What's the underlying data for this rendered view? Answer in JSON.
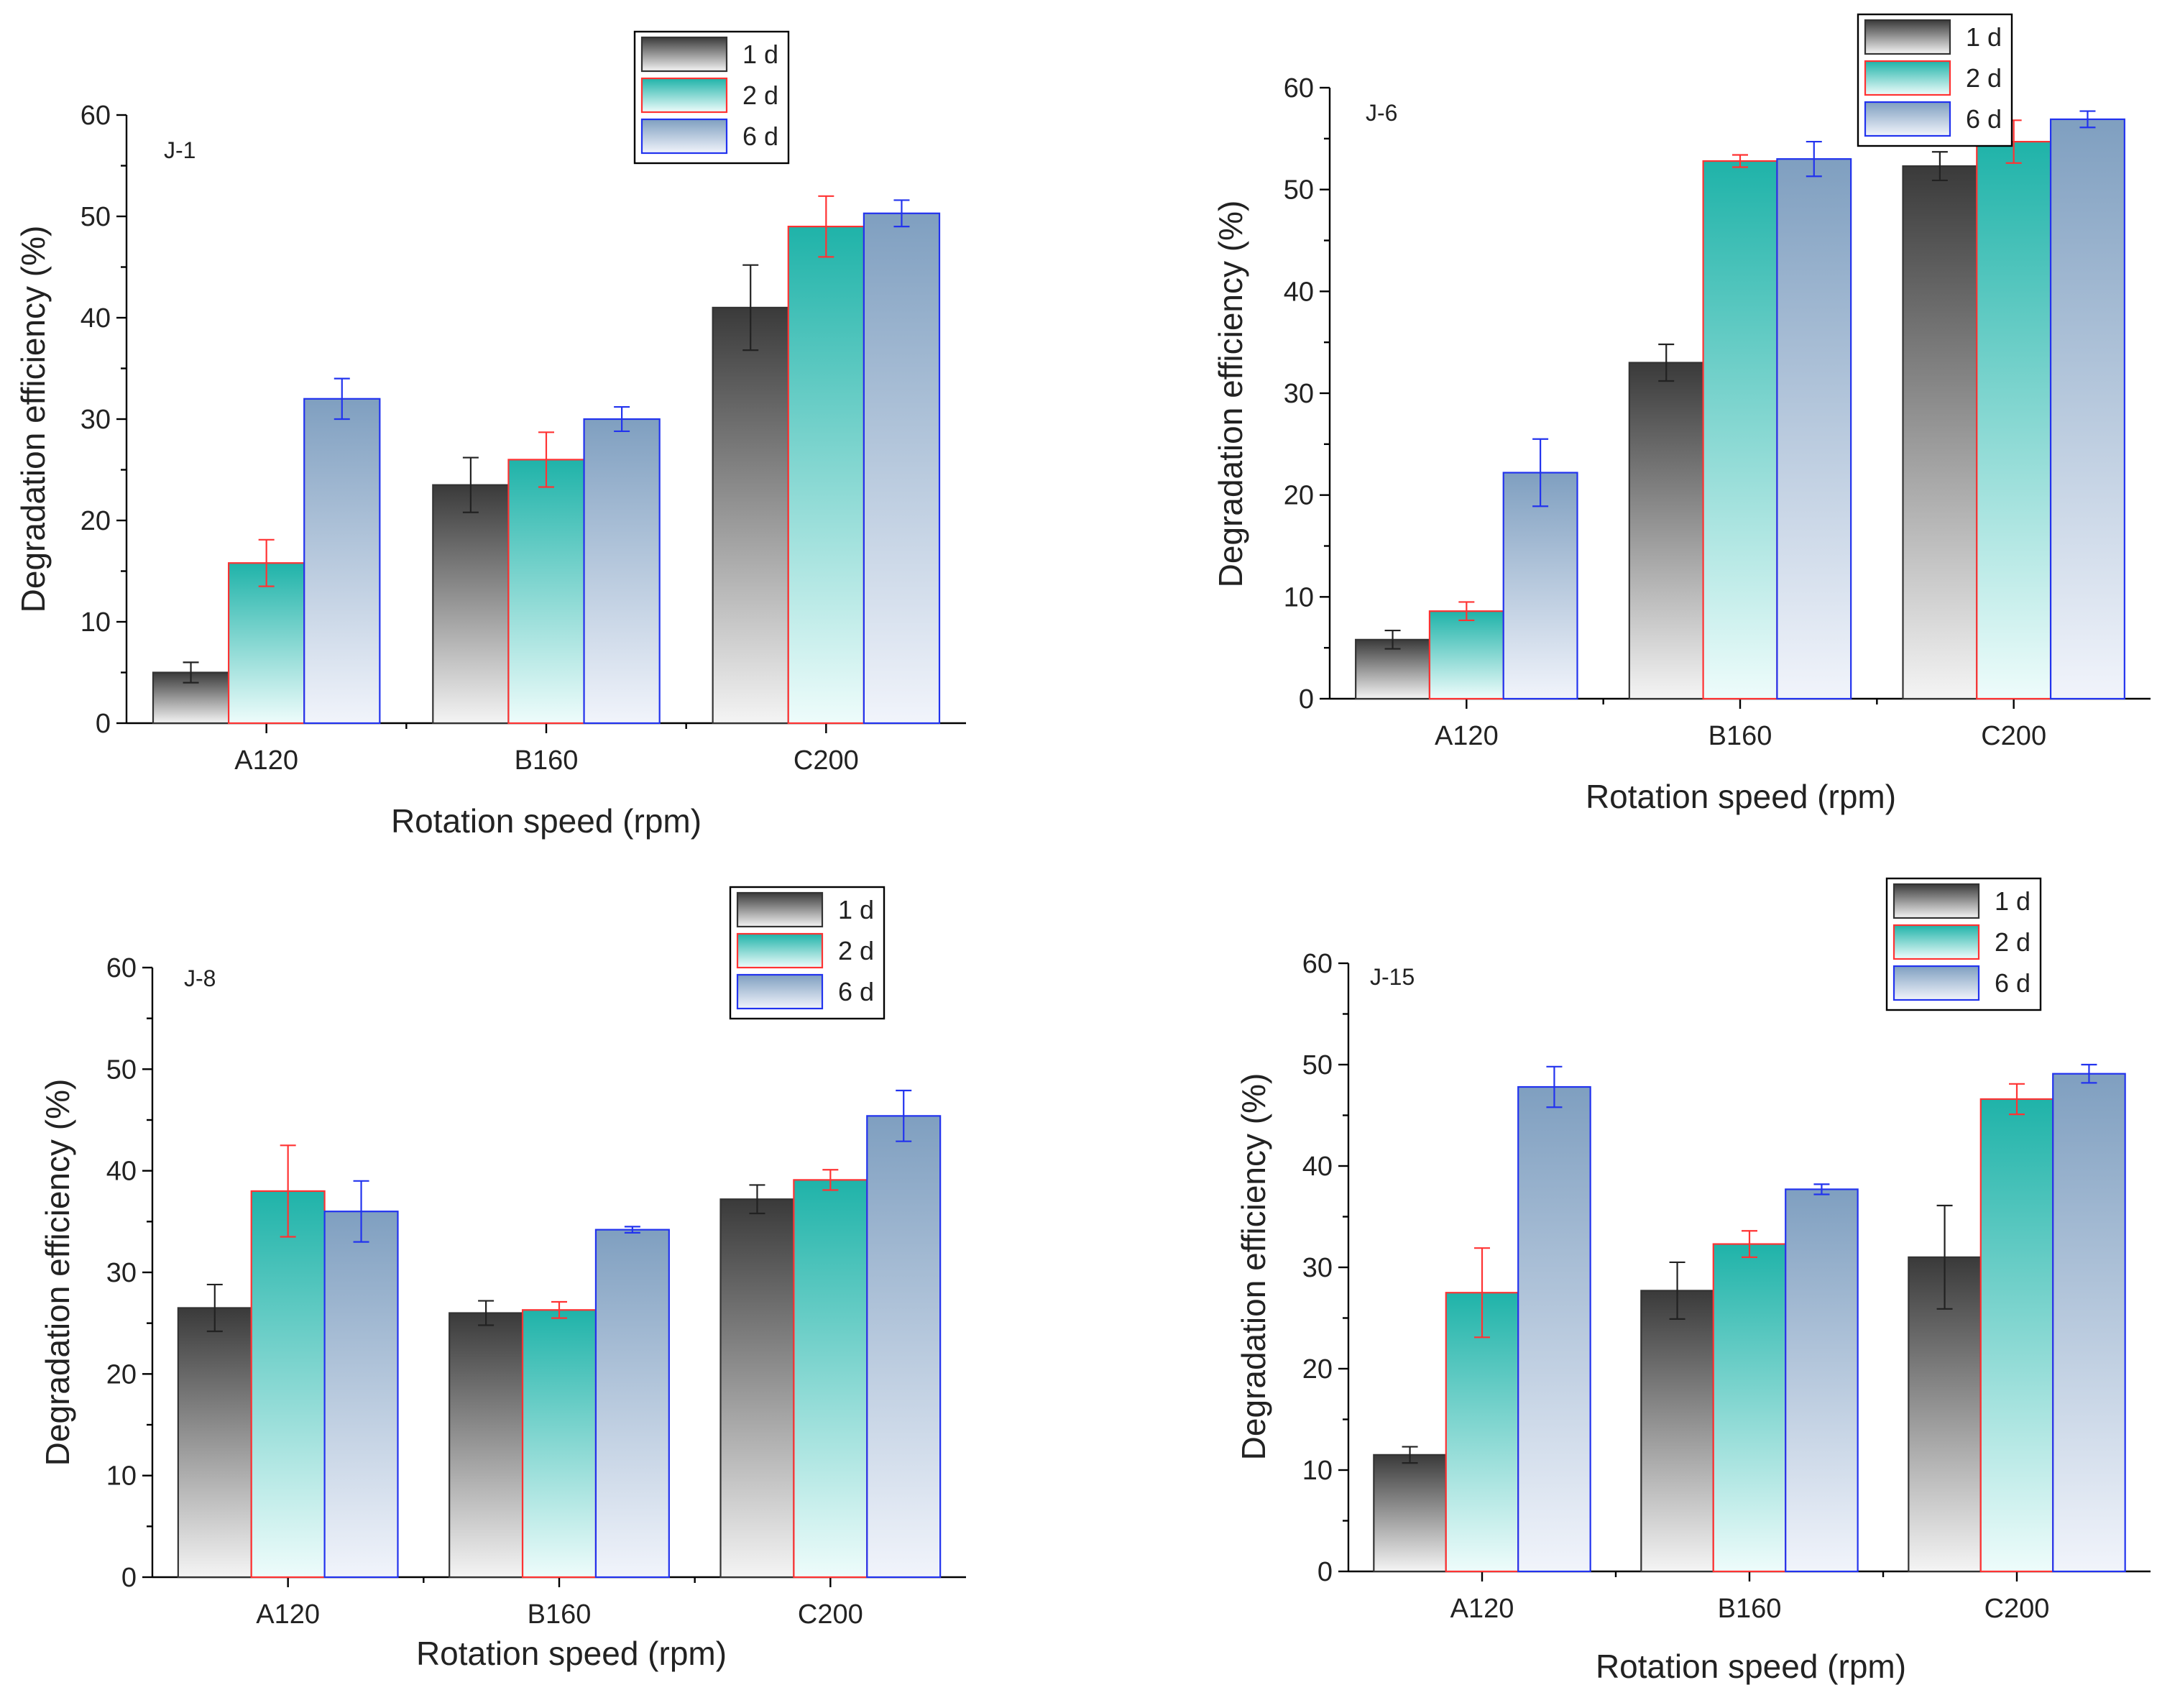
{
  "legend": {
    "labels": [
      "1 d",
      "2 d",
      "6 d"
    ]
  },
  "colors": {
    "s1_dark": "#3a3a3a",
    "s1_light": "#f4f4f4",
    "s1_stroke": "#333333",
    "s2_dark": "#1fb3a9",
    "s2_light": "#eefcfb",
    "s2_stroke": "#ff3333",
    "s3_dark": "#7f9fc0",
    "s3_light": "#f1f4fb",
    "s3_stroke": "#2233ee",
    "err1": "#222222",
    "err2": "#ff3333",
    "err3": "#2233ee"
  },
  "chart_data": [
    {
      "type": "bar",
      "panel": "J-1",
      "xlabel": "Rotation speed (rpm)",
      "ylabel": "Degradation efficiency (%)",
      "categories": [
        "A120",
        "B160",
        "C200"
      ],
      "ylim": [
        0,
        60
      ],
      "yticks": [
        0,
        10,
        20,
        30,
        40,
        50,
        60
      ],
      "series": [
        {
          "name": "1 d",
          "values": [
            5.0,
            23.5,
            41.0
          ],
          "errors": [
            1.0,
            2.7,
            4.2
          ]
        },
        {
          "name": "2 d",
          "values": [
            15.8,
            26.0,
            49.0
          ],
          "errors": [
            2.3,
            2.7,
            3.0
          ]
        },
        {
          "name": "6 d",
          "values": [
            32.0,
            30.0,
            50.3
          ],
          "errors": [
            2.0,
            1.2,
            1.3
          ]
        }
      ]
    },
    {
      "type": "bar",
      "panel": "J-6",
      "xlabel": "Rotation speed (rpm)",
      "ylabel": "Degradation efficiency (%)",
      "categories": [
        "A120",
        "B160",
        "C200"
      ],
      "ylim": [
        0,
        60
      ],
      "yticks": [
        0,
        10,
        20,
        30,
        40,
        50,
        60
      ],
      "series": [
        {
          "name": "1 d",
          "values": [
            5.8,
            33.0,
            52.3
          ],
          "errors": [
            0.9,
            1.8,
            1.4
          ]
        },
        {
          "name": "2 d",
          "values": [
            8.6,
            52.8,
            54.7
          ],
          "errors": [
            0.9,
            0.6,
            2.1
          ]
        },
        {
          "name": "6 d",
          "values": [
            22.2,
            53.0,
            56.9
          ],
          "errors": [
            3.3,
            1.7,
            0.8
          ]
        }
      ]
    },
    {
      "type": "bar",
      "panel": "J-8",
      "xlabel": "Rotation speed (rpm)",
      "ylabel": "Degradation efficiency (%)",
      "categories": [
        "A120",
        "B160",
        "C200"
      ],
      "ylim": [
        0,
        60
      ],
      "yticks": [
        0,
        10,
        20,
        30,
        40,
        50,
        60
      ],
      "series": [
        {
          "name": "1 d",
          "values": [
            26.5,
            26.0,
            37.2
          ],
          "errors": [
            2.3,
            1.2,
            1.4
          ]
        },
        {
          "name": "2 d",
          "values": [
            38.0,
            26.3,
            39.1
          ],
          "errors": [
            4.5,
            0.8,
            1.0
          ]
        },
        {
          "name": "6 d",
          "values": [
            36.0,
            34.2,
            45.4
          ],
          "errors": [
            3.0,
            0.3,
            2.5
          ]
        }
      ]
    },
    {
      "type": "bar",
      "panel": "J-15",
      "xlabel": "Rotation speed (rpm)",
      "ylabel": "Degradation efficiency (%)",
      "categories": [
        "A120",
        "B160",
        "C200"
      ],
      "ylim": [
        0,
        60
      ],
      "yticks": [
        0,
        10,
        20,
        30,
        40,
        50,
        60
      ],
      "series": [
        {
          "name": "1 d",
          "values": [
            11.5,
            27.7,
            31.0
          ],
          "errors": [
            0.8,
            2.8,
            5.1
          ]
        },
        {
          "name": "2 d",
          "values": [
            27.5,
            32.3,
            46.6
          ],
          "errors": [
            4.4,
            1.3,
            1.5
          ]
        },
        {
          "name": "6 d",
          "values": [
            47.8,
            37.7,
            49.1
          ],
          "errors": [
            2.0,
            0.5,
            0.9
          ]
        }
      ]
    }
  ]
}
